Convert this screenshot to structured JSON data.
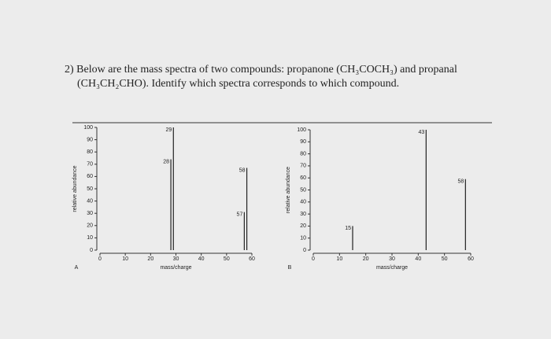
{
  "question": {
    "lines": [
      "2) Below are the mass spectra of two compounds: propanone (CH₃COCH₃) and propanal",
      "(CH₃CH₂CHO). Identify which spectra corresponds to which compound."
    ]
  },
  "chart_data": [
    {
      "type": "bar",
      "panel": "A",
      "xlabel": "mass/charge",
      "ylabel": "relative abundance",
      "x": [
        28,
        29,
        57,
        58
      ],
      "values": [
        74,
        100,
        31,
        67
      ],
      "color": "#222222",
      "xlim": [
        0,
        60
      ],
      "xticks": [
        0,
        10,
        20,
        30,
        40,
        50,
        60
      ],
      "ylim": [
        0,
        100
      ],
      "yticks": [
        0,
        10,
        20,
        30,
        40,
        50,
        60,
        70,
        80,
        90,
        100
      ]
    },
    {
      "type": "bar",
      "panel": "B",
      "xlabel": "mass/charge",
      "ylabel": "relative abundance",
      "x": [
        15,
        43,
        58
      ],
      "values": [
        20,
        100,
        59
      ],
      "color": "#222222",
      "xlim": [
        0,
        60
      ],
      "xticks": [
        0,
        10,
        20,
        30,
        40,
        50,
        60
      ],
      "ylim": [
        0,
        100
      ],
      "yticks": [
        0,
        10,
        20,
        30,
        40,
        50,
        60,
        70,
        80,
        90,
        100
      ]
    }
  ]
}
